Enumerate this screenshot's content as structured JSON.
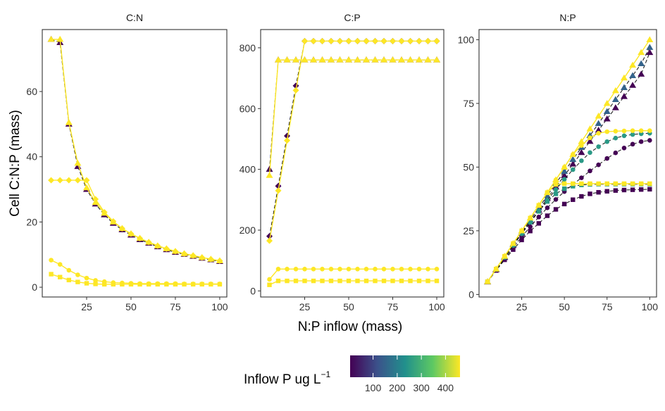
{
  "chart_data": {
    "type": "line",
    "xlabel": "N:P inflow (mass)",
    "ylabel": "Cell C:N:P (mass)",
    "x": [
      5,
      10,
      15,
      20,
      25,
      30,
      35,
      40,
      45,
      50,
      55,
      60,
      65,
      70,
      75,
      80,
      85,
      90,
      95,
      100
    ],
    "legend": {
      "title": "Inflow P ug L",
      "title_sup": "−1",
      "ticks": [
        "100",
        "200",
        "300",
        "400"
      ],
      "tick_values": [
        100,
        200,
        300,
        400
      ],
      "range": [
        5,
        460
      ],
      "colors": [
        "#440154",
        "#3B528B",
        "#21908C",
        "#5DC863",
        "#FDE725"
      ],
      "placement": "bottom"
    },
    "grid": false,
    "panels": [
      {
        "title": "C:N",
        "xlim": [
          0,
          104
        ],
        "ylim": [
          -3,
          79
        ],
        "xticks": [
          25,
          50,
          75,
          100
        ],
        "yticks": [
          0,
          20,
          40,
          60
        ],
        "series": [
          {
            "marker": "triangle",
            "p": 460,
            "values": [
              76,
              76,
              50.5,
              38,
              30.5,
              26,
              22.7,
              20,
              18,
              16.4,
              15,
              13.8,
              12.7,
              11.8,
              11,
              10.3,
              9.7,
              9.1,
              8.6,
              8.1
            ]
          },
          {
            "marker": "triangle",
            "p": 5,
            "values": [
              76,
              75,
              50,
              37,
              30,
              25.5,
              22.2,
              19.6,
              17.6,
              16,
              14.6,
              13.5,
              12.4,
              11.5,
              10.7,
              10.1,
              9.5,
              8.9,
              8.4,
              7.9
            ]
          },
          {
            "marker": "diamond",
            "p": 460,
            "values": [
              32.8,
              32.8,
              32.8,
              32.8,
              32.8,
              27,
              23,
              20.2,
              18,
              16.4,
              15,
              13.8,
              12.7,
              11.8,
              11,
              10.3,
              9.7,
              9.1,
              8.6,
              8.1
            ]
          },
          {
            "marker": "circle",
            "p": 460,
            "values": [
              8.3,
              7,
              5.2,
              3.8,
              2.8,
              2.1,
              1.7,
              1.4,
              1.3,
              1.2,
              1.1,
              1.1,
              1.1,
              1.1,
              1.1,
              1,
              1,
              1,
              1,
              1
            ]
          },
          {
            "marker": "square",
            "p": 460,
            "values": [
              4,
              3.1,
              2.2,
              1.6,
              1.2,
              1,
              0.9,
              0.9,
              0.9,
              0.9,
              0.9,
              0.9,
              0.9,
              0.9,
              0.9,
              0.9,
              0.9,
              0.9,
              0.9,
              0.9
            ]
          }
        ]
      },
      {
        "title": "C:P",
        "xlim": [
          0,
          104
        ],
        "ylim": [
          -20,
          860
        ],
        "xticks": [
          25,
          50,
          75,
          100
        ],
        "yticks": [
          0,
          200,
          400,
          600,
          800
        ],
        "series": [
          {
            "marker": "triangle",
            "p": 460,
            "values": [
              380,
              760,
              760,
              760,
              760,
              760,
              760,
              760,
              760,
              760,
              760,
              760,
              760,
              760,
              760,
              760,
              760,
              760,
              760,
              760
            ]
          },
          {
            "marker": "triangle",
            "p": 5,
            "values": [
              400,
              760,
              760,
              760,
              760,
              760,
              760,
              760,
              760,
              760,
              760,
              760,
              760,
              760,
              760,
              760,
              760,
              760,
              760,
              760
            ]
          },
          {
            "marker": "diamond",
            "p": 460,
            "values": [
              165,
              330,
              495,
              660,
              822,
              822,
              822,
              822,
              822,
              822,
              822,
              822,
              822,
              822,
              822,
              822,
              822,
              822,
              822,
              822
            ]
          },
          {
            "marker": "diamond",
            "p": 5,
            "values": [
              180,
              345,
              510,
              675,
              822,
              822,
              822,
              822,
              822,
              822,
              822,
              822,
              822,
              822,
              822,
              822,
              822,
              822,
              822,
              822
            ]
          },
          {
            "marker": "circle",
            "p": 460,
            "values": [
              38,
              72,
              72,
              72,
              72,
              72,
              72,
              72,
              72,
              72,
              72,
              72,
              72,
              72,
              72,
              72,
              72,
              72,
              72,
              72
            ]
          },
          {
            "marker": "square",
            "p": 460,
            "values": [
              20,
              33,
              33,
              33,
              33,
              33,
              33,
              33,
              33,
              33,
              33,
              33,
              33,
              33,
              33,
              33,
              33,
              33,
              33,
              33
            ]
          }
        ]
      },
      {
        "title": "N:P",
        "xlim": [
          0,
          104
        ],
        "ylim": [
          -1,
          104
        ],
        "xticks": [
          25,
          50,
          75,
          100
        ],
        "yticks": [
          0,
          25,
          50,
          75,
          100
        ],
        "series": [
          {
            "marker": "triangle",
            "p": 5,
            "values": [
              4.9,
              9.7,
              14.5,
              19.2,
              23.9,
              28.5,
              33.1,
              37.7,
              42.2,
              46.7,
              51.2,
              55.7,
              60.1,
              64.5,
              68.9,
              73.3,
              77.7,
              82.1,
              86.5,
              95
            ]
          },
          {
            "marker": "triangle",
            "p": 150,
            "values": [
              5,
              9.9,
              14.8,
              19.6,
              24.4,
              29.2,
              34,
              38.8,
              43.6,
              48.3,
              53,
              57.7,
              62.4,
              67.1,
              71.8,
              76.5,
              81.2,
              85.9,
              90.6,
              97
            ]
          },
          {
            "marker": "triangle",
            "p": 460,
            "values": [
              5,
              10,
              15,
              20,
              25,
              30,
              35,
              40,
              45,
              50,
              55,
              60,
              65,
              70,
              75,
              80,
              85,
              90,
              95,
              100
            ]
          },
          {
            "marker": "circle",
            "p": 5,
            "values": [
              4.9,
              9.5,
              14,
              18.4,
              22.6,
              26.6,
              30.4,
              34,
              37.3,
              40.4,
              43.2,
              45.8,
              48.5,
              50.9,
              53.4,
              55.6,
              57.5,
              59,
              60,
              60.5
            ]
          },
          {
            "marker": "circle",
            "p": 250,
            "values": [
              5,
              9.8,
              14.5,
              19.2,
              23.8,
              28.3,
              32.7,
              37,
              41.2,
              45.2,
              49,
              52.5,
              55.7,
              58,
              60,
              61.4,
              62.3,
              62.8,
              63.1,
              63.3
            ]
          },
          {
            "marker": "circle",
            "p": 460,
            "values": [
              5,
              10,
              15,
              20,
              25,
              30,
              35,
              40,
              45,
              50,
              55,
              58.5,
              61.5,
              63.3,
              63.9,
              64.1,
              64.2,
              64.3,
              64.3,
              64.3
            ]
          },
          {
            "marker": "square",
            "p": 5,
            "values": [
              4.9,
              9.4,
              13.6,
              17.6,
              21.4,
              24.9,
              27.9,
              30.9,
              33.4,
              35.5,
              37.2,
              38.5,
              39.5,
              40.1,
              40.5,
              40.8,
              41,
              41.1,
              41.2,
              41.3
            ]
          },
          {
            "marker": "square",
            "p": 250,
            "values": [
              5,
              9.9,
              14.7,
              19.4,
              24,
              28.4,
              32.6,
              36.5,
              39.5,
              41.5,
              42.5,
              43,
              43.2,
              43.3,
              43.3,
              43.3,
              43.3,
              43.3,
              43.3,
              43.3
            ]
          },
          {
            "marker": "square",
            "p": 460,
            "values": [
              5,
              10,
              15,
              20,
              25,
              30,
              35,
              40,
              43.2,
              43.5,
              43.5,
              43.5,
              43.5,
              43.5,
              43.5,
              43.5,
              43.5,
              43.5,
              43.5,
              43.5
            ]
          }
        ]
      }
    ]
  }
}
